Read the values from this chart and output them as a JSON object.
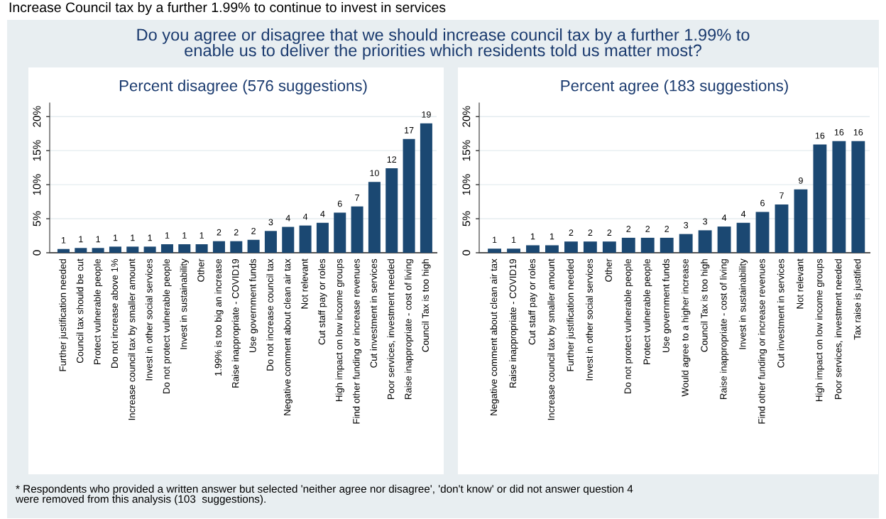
{
  "chart_data": [
    {
      "type": "bar",
      "title": "Percent disagree (576 suggestions)",
      "categories": [
        "Further justification needed",
        "Council tax should be cut",
        "Protect vulnerable people",
        "Do not increase above 1%",
        "Increase council tax by smaller amount",
        "Invest in other social services",
        "Do not protect vulnerable people",
        "Invest in sustainability",
        "Other",
        "1.99% is too big an increase",
        "Raise inappropriate - COVID19",
        "Use government funds",
        "Do not increase council tax",
        "Negative comment about clean air tax",
        "Not relevant",
        "Cut staff pay or roles",
        "High impact on low income groups",
        "Find other funding or increase revenues",
        "Cut investment in services",
        "Poor services, investment needed",
        "Raise inappropriate - cost of living",
        "Council Tax is too high"
      ],
      "values": [
        0.55,
        0.7,
        0.7,
        0.9,
        0.9,
        0.9,
        1.25,
        1.25,
        1.25,
        1.7,
        1.7,
        1.9,
        3.2,
        3.8,
        4.0,
        4.4,
        5.9,
        6.8,
        10.4,
        12.4,
        16.7,
        19.0
      ],
      "value_labels": [
        "1",
        "1",
        "1",
        "1",
        "1",
        "1",
        "1",
        "1",
        "1",
        "2",
        "2",
        "2",
        "3",
        "4",
        "4",
        "4",
        "6",
        "7",
        "10",
        "12",
        "17",
        "19"
      ],
      "color": "#1b4872",
      "ylim": [
        0,
        22
      ],
      "yticks": [
        0,
        {
          "value": 5,
          "label": "5%"
        },
        {
          "value": 10,
          "label": "10%"
        },
        {
          "value": 15,
          "label": "15%"
        },
        {
          "value": 20,
          "label": "20%"
        }
      ],
      "grid": "y",
      "annotations": [
        "Increase Council tax by a further 1.99% to continue to invest in services",
        "Do you agree or disagree that we should increase council tax by a further 1.99% to\nenable us to deliver the priorities which residents told us matter most?",
        "* Respondents who provided a written answer but selected 'neither agree nor disagree', 'don't know' or did not answer question 4\nwere removed from this analysis (103  suggestions)."
      ]
    },
    {
      "type": "bar",
      "title": "Percent agree (183 suggestions)",
      "categories": [
        "Negative comment about clean air tax",
        "Raise inappropriate - COVID19",
        "Cut staff pay or roles",
        "Increase council tax by smaller amount",
        "Further justification needed",
        "Invest in other social services",
        "Other",
        "Do not protect vulnerable people",
        "Protect vulnerable people",
        "Use government funds",
        "Would agree to a higher increase",
        "Council Tax is too high",
        "Raise inappropriate - cost of living",
        "Invest in sustainability",
        "Find other funding or increase revenues",
        "Cut investment in services",
        "Not relevant",
        "High impact on low income groups",
        "Poor services, investment needed",
        "Tax raise is justified"
      ],
      "values": [
        0.6,
        0.6,
        1.1,
        1.1,
        1.65,
        1.65,
        1.65,
        2.2,
        2.2,
        2.2,
        2.75,
        3.3,
        3.85,
        4.4,
        6.0,
        7.1,
        9.3,
        15.9,
        16.4,
        16.4
      ],
      "value_labels": [
        "1",
        "1",
        "1",
        "1",
        "2",
        "2",
        "2",
        "2",
        "2",
        "2",
        "3",
        "3",
        "4",
        "4",
        "6",
        "7",
        "9",
        "16",
        "16",
        "16"
      ],
      "color": "#1b4872",
      "ylim": [
        0,
        22
      ],
      "yticks": [
        0,
        {
          "value": 5,
          "label": "5%"
        },
        {
          "value": 10,
          "label": "10%"
        },
        {
          "value": 15,
          "label": "15%"
        },
        {
          "value": 20,
          "label": "20%"
        }
      ],
      "grid": "y"
    }
  ]
}
